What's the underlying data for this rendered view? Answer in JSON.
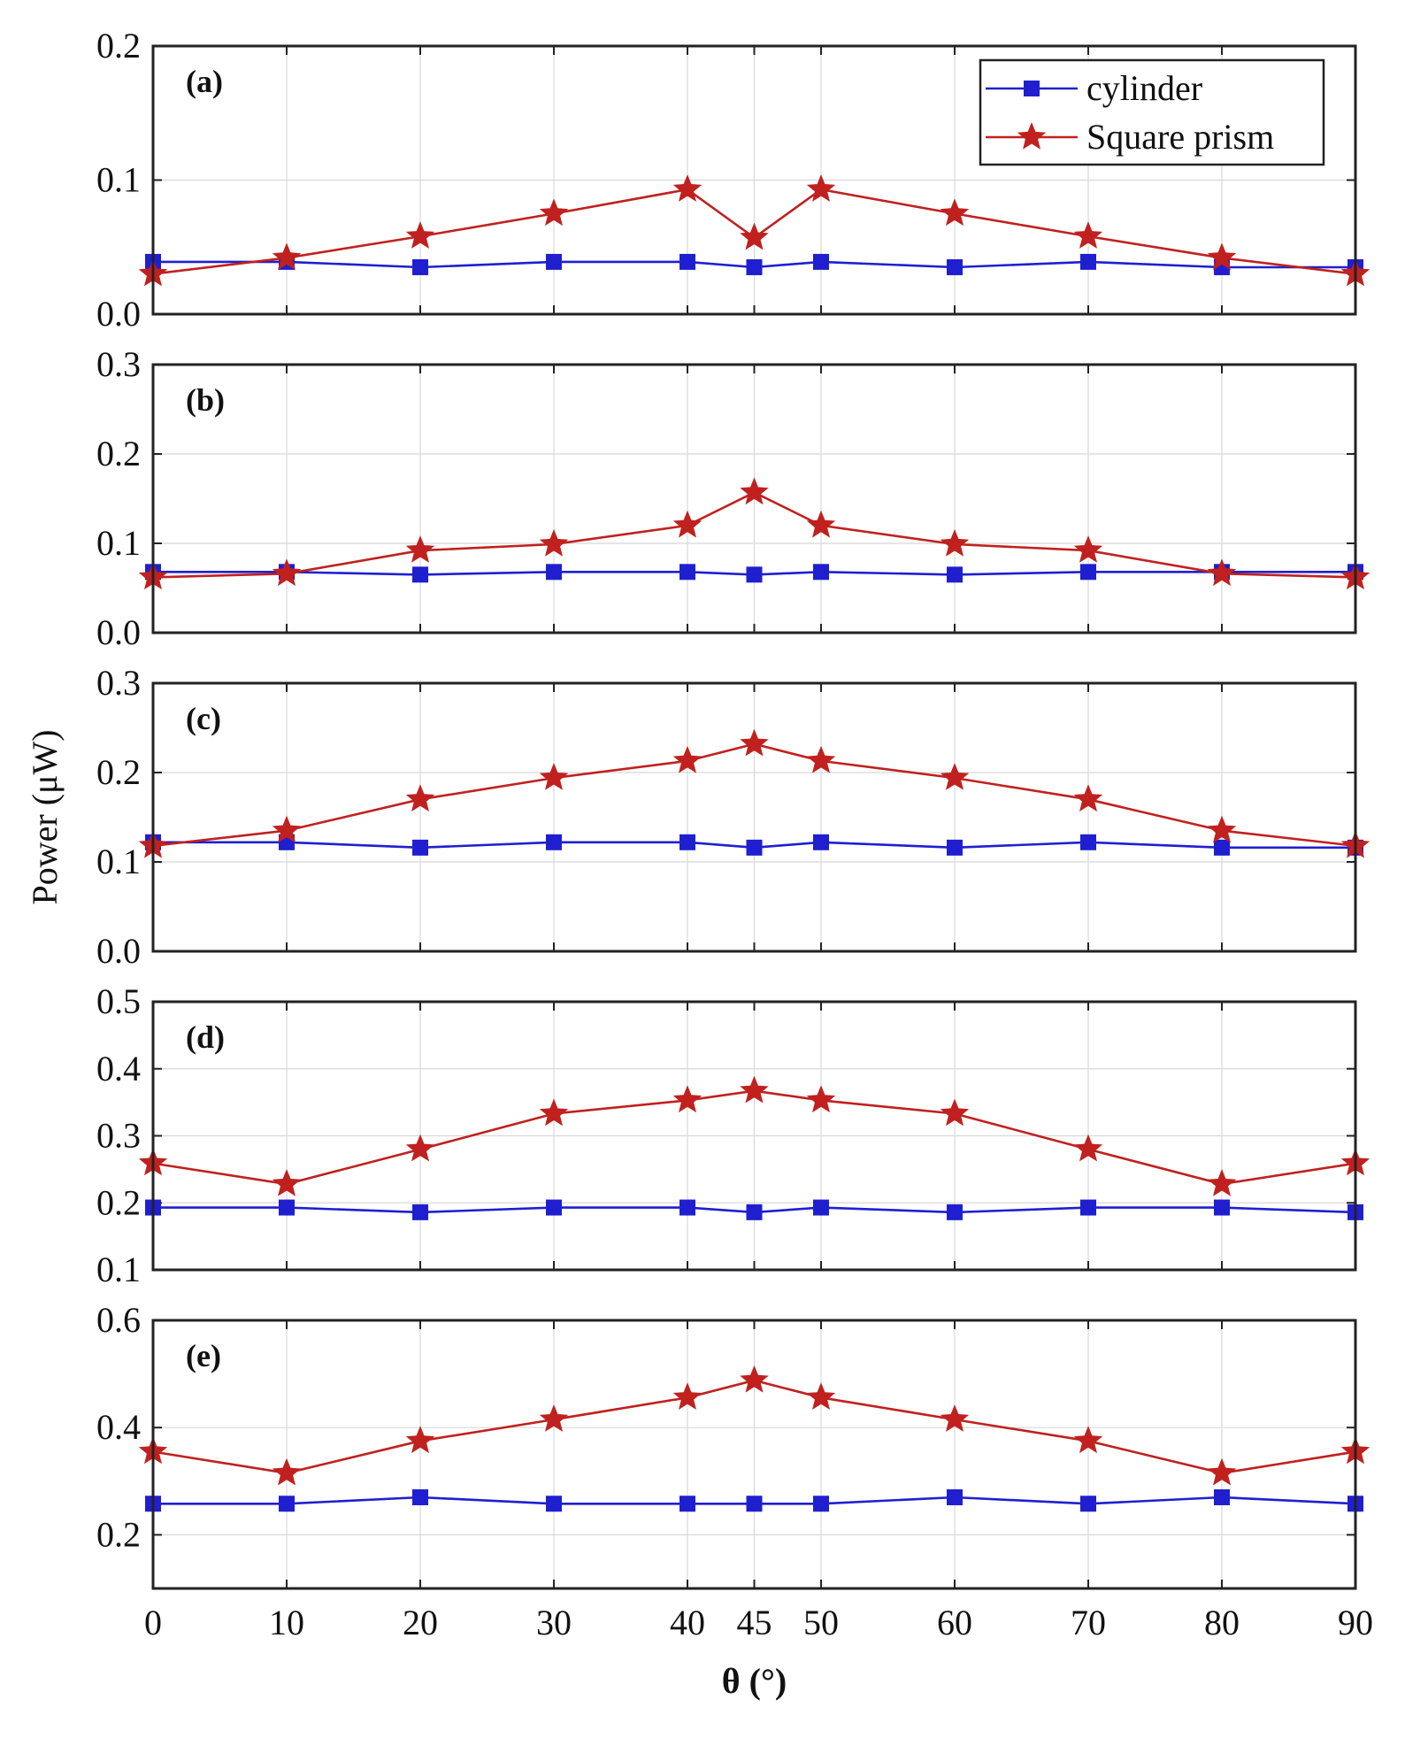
{
  "figure": {
    "xlabel": "θ (°)",
    "ylabel": "Power (μW)"
  },
  "legend": {
    "position": "top-right of panel (a)",
    "entries": [
      {
        "name": "cylinder",
        "color": "#1f1fd0",
        "marker": "square"
      },
      {
        "name": "Square prism",
        "color": "#c0211f",
        "marker": "star"
      }
    ]
  },
  "chart_data": [
    {
      "type": "line",
      "panel": "(a)",
      "x": [
        0,
        10,
        20,
        30,
        40,
        45,
        50,
        60,
        70,
        80,
        90
      ],
      "x_tick_labels": [
        "0",
        "10",
        "20",
        "30",
        "40",
        "45",
        "50",
        "60",
        "70",
        "80",
        "90"
      ],
      "ylim": [
        0.0,
        0.2
      ],
      "yticks": [
        0.0,
        0.1,
        0.2
      ],
      "ytick_labels": [
        "0.0",
        "0.1",
        "0.2"
      ],
      "grid": true,
      "series": [
        {
          "name": "cylinder",
          "values": [
            0.039,
            0.039,
            0.035,
            0.039,
            0.039,
            0.035,
            0.039,
            0.035,
            0.039,
            0.035,
            0.035
          ]
        },
        {
          "name": "Square prism",
          "values": [
            0.03,
            0.042,
            0.058,
            0.075,
            0.093,
            0.057,
            0.093,
            0.075,
            0.058,
            0.042,
            0.03
          ]
        }
      ]
    },
    {
      "type": "line",
      "panel": "(b)",
      "x": [
        0,
        10,
        20,
        30,
        40,
        45,
        50,
        60,
        70,
        80,
        90
      ],
      "x_tick_labels": [
        "0",
        "10",
        "20",
        "30",
        "40",
        "45",
        "50",
        "60",
        "70",
        "80",
        "90"
      ],
      "ylim": [
        0.0,
        0.3
      ],
      "yticks": [
        0.0,
        0.1,
        0.2,
        0.3
      ],
      "ytick_labels": [
        "0.0",
        "0.1",
        "0.2",
        "0.3"
      ],
      "grid": true,
      "series": [
        {
          "name": "cylinder",
          "values": [
            0.068,
            0.068,
            0.065,
            0.068,
            0.068,
            0.065,
            0.068,
            0.065,
            0.068,
            0.068,
            0.068
          ]
        },
        {
          "name": "Square prism",
          "values": [
            0.062,
            0.066,
            0.092,
            0.099,
            0.12,
            0.157,
            0.12,
            0.099,
            0.092,
            0.066,
            0.062
          ]
        }
      ]
    },
    {
      "type": "line",
      "panel": "(c)",
      "x": [
        0,
        10,
        20,
        30,
        40,
        45,
        50,
        60,
        70,
        80,
        90
      ],
      "x_tick_labels": [
        "0",
        "10",
        "20",
        "30",
        "40",
        "45",
        "50",
        "60",
        "70",
        "80",
        "90"
      ],
      "ylim": [
        0.0,
        0.3
      ],
      "yticks": [
        0.0,
        0.1,
        0.2,
        0.3
      ],
      "ytick_labels": [
        "0.0",
        "0.1",
        "0.2",
        "0.3"
      ],
      "grid": true,
      "series": [
        {
          "name": "cylinder",
          "values": [
            0.122,
            0.122,
            0.116,
            0.122,
            0.122,
            0.116,
            0.122,
            0.116,
            0.122,
            0.116,
            0.116
          ]
        },
        {
          "name": "Square prism",
          "values": [
            0.118,
            0.135,
            0.17,
            0.194,
            0.213,
            0.232,
            0.213,
            0.194,
            0.17,
            0.135,
            0.118
          ]
        }
      ]
    },
    {
      "type": "line",
      "panel": "(d)",
      "x": [
        0,
        10,
        20,
        30,
        40,
        45,
        50,
        60,
        70,
        80,
        90
      ],
      "x_tick_labels": [
        "0",
        "10",
        "20",
        "30",
        "40",
        "45",
        "50",
        "60",
        "70",
        "80",
        "90"
      ],
      "ylim": [
        0.1,
        0.5
      ],
      "yticks": [
        0.1,
        0.2,
        0.3,
        0.4,
        0.5
      ],
      "ytick_labels": [
        "0.1",
        "0.2",
        "0.3",
        "0.4",
        "0.5"
      ],
      "grid": true,
      "series": [
        {
          "name": "cylinder",
          "values": [
            0.193,
            0.193,
            0.186,
            0.193,
            0.193,
            0.186,
            0.193,
            0.186,
            0.193,
            0.193,
            0.186
          ]
        },
        {
          "name": "Square prism",
          "values": [
            0.259,
            0.228,
            0.28,
            0.333,
            0.353,
            0.367,
            0.353,
            0.333,
            0.28,
            0.228,
            0.259
          ]
        }
      ]
    },
    {
      "type": "line",
      "panel": "(e)",
      "x": [
        0,
        10,
        20,
        30,
        40,
        45,
        50,
        60,
        70,
        80,
        90
      ],
      "x_tick_labels": [
        "0",
        "10",
        "20",
        "30",
        "40",
        "45",
        "50",
        "60",
        "70",
        "80",
        "90"
      ],
      "ylim": [
        0.1,
        0.6
      ],
      "yticks": [
        0.2,
        0.4,
        0.6
      ],
      "ytick_labels": [
        "0.2",
        "0.4",
        "0.6"
      ],
      "grid": true,
      "series": [
        {
          "name": "cylinder",
          "values": [
            0.258,
            0.258,
            0.27,
            0.258,
            0.258,
            0.258,
            0.258,
            0.27,
            0.258,
            0.27,
            0.258
          ]
        },
        {
          "name": "Square prism",
          "values": [
            0.355,
            0.315,
            0.375,
            0.415,
            0.456,
            0.488,
            0.456,
            0.415,
            0.375,
            0.315,
            0.355
          ]
        }
      ]
    }
  ]
}
